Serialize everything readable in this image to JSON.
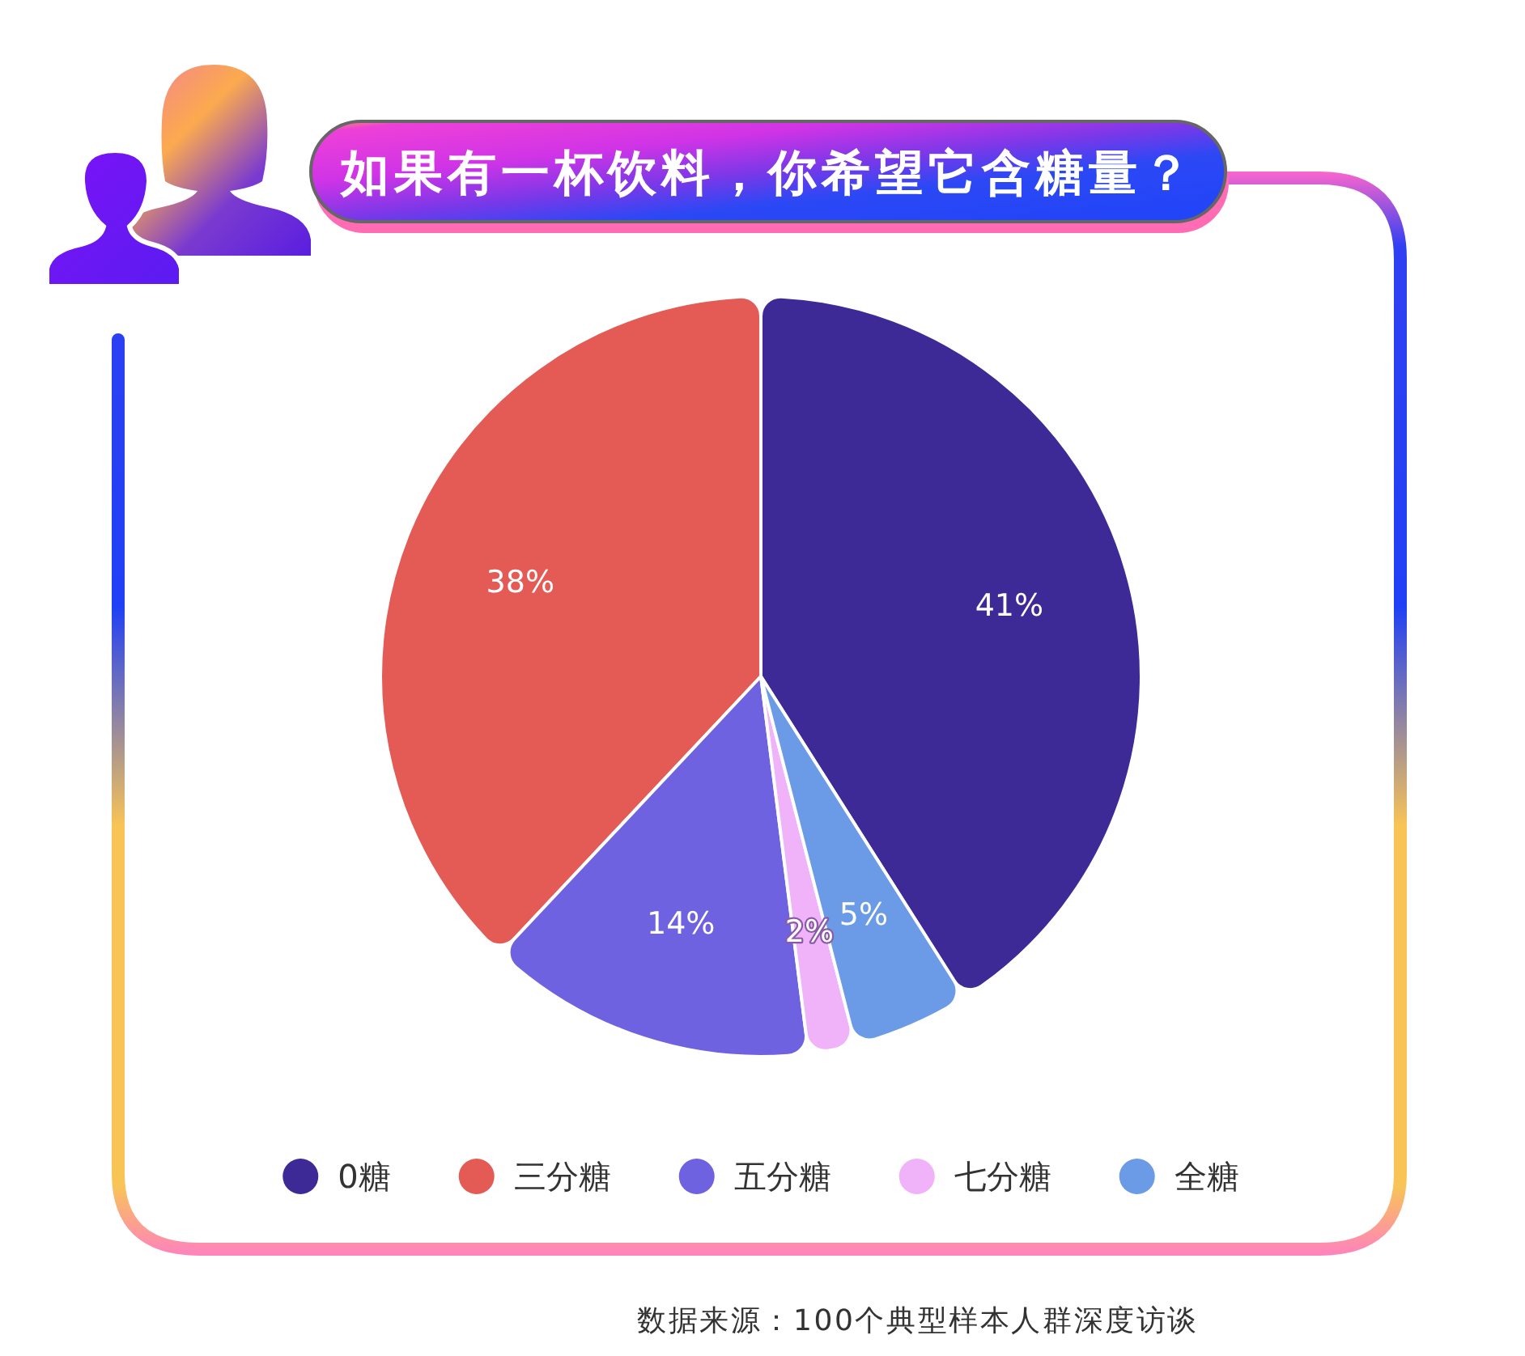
{
  "chart_data": {
    "type": "pie",
    "title": "如果有一杯饮料，你希望它含糖量？",
    "categories": [
      "0糖",
      "三分糖",
      "五分糖",
      "七分糖",
      "全糖"
    ],
    "values": [
      41,
      38,
      14,
      2,
      5
    ],
    "colors": [
      "#3e2a97",
      "#e45a55",
      "#6e62e0",
      "#f0b2f8",
      "#6b9ae6"
    ],
    "value_labels": [
      "41%",
      "38%",
      "14%",
      "2%",
      "5%"
    ],
    "legend": "bottom",
    "annotations": [
      "数据来源：100个典型样本人群深度访谈"
    ]
  }
}
